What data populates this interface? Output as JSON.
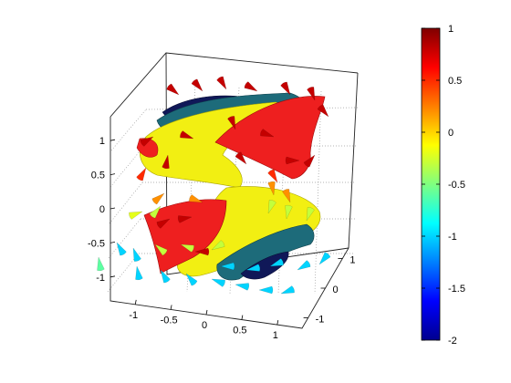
{
  "chart_data": {
    "type": "3d-isosurface-cone",
    "axes": {
      "x": {
        "ticks": [
          -1,
          -0.5,
          0,
          0.5,
          1
        ],
        "tick_labels": [
          "-1",
          "-0.5",
          "0",
          "0.5",
          "1"
        ],
        "range": [
          -1.35,
          1.35
        ]
      },
      "y": {
        "ticks": [
          -1,
          0,
          1
        ],
        "tick_labels": [
          "-1",
          "0",
          "1"
        ],
        "range": [
          -1.35,
          1.35
        ]
      },
      "z": {
        "ticks": [
          -1,
          -0.5,
          0,
          0.5,
          1
        ],
        "tick_labels": [
          "-1",
          "-0.5",
          "0",
          "0.5",
          "1"
        ],
        "range": [
          -1.35,
          1.35
        ]
      },
      "grid": true,
      "box": true
    },
    "isosurfaces": [
      {
        "value": 0.8,
        "color": "#ee1f1f"
      },
      {
        "value": -0.2,
        "color": "#f2ef12"
      },
      {
        "value": -1.3,
        "color": "#1d6b7a"
      },
      {
        "value": -1.9,
        "color": "#101858"
      }
    ],
    "cones": {
      "color_range": [
        -2,
        1
      ]
    },
    "colorbar": {
      "ticks": [
        1,
        0.5,
        0,
        -0.5,
        -1,
        -1.5,
        -2
      ],
      "tick_labels": [
        "1",
        "0.5",
        "0",
        "-0.5",
        "-1",
        "-1.5",
        "-2"
      ],
      "range": [
        -2,
        1
      ],
      "colormap": "jet",
      "placement": "right"
    }
  }
}
